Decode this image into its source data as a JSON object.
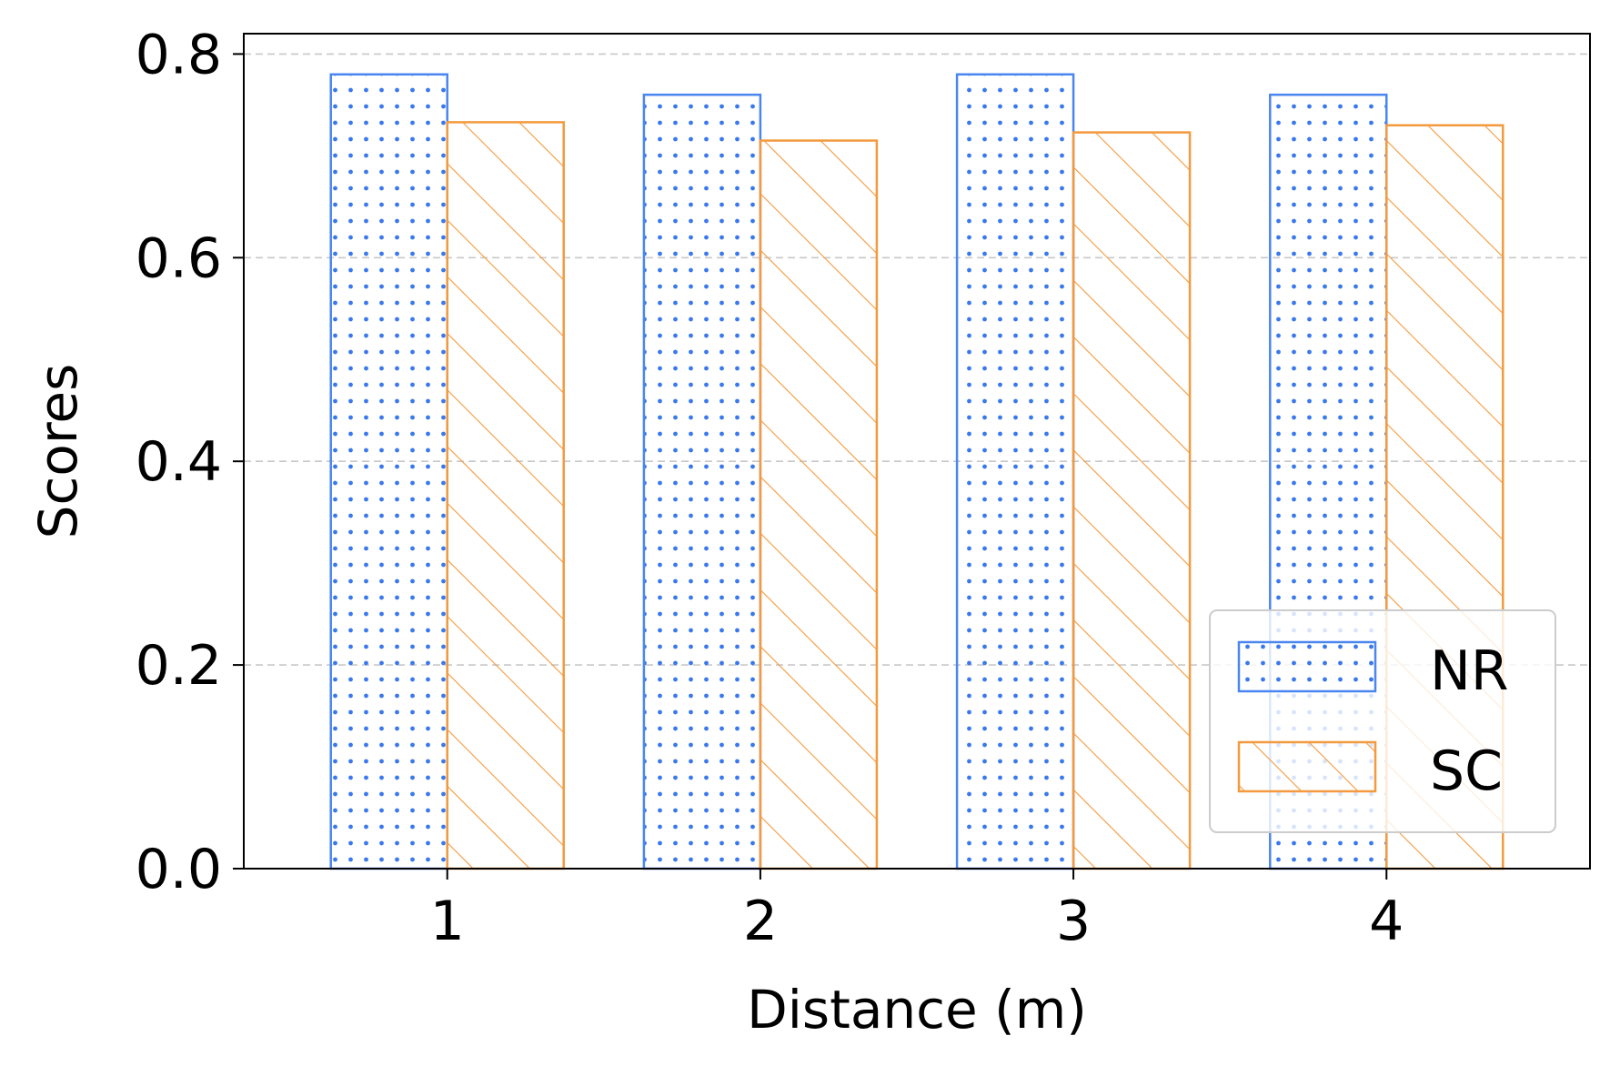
{
  "chart_data": {
    "type": "bar",
    "categories": [
      "1",
      "2",
      "3",
      "4"
    ],
    "series": [
      {
        "name": "NR",
        "values": [
          0.78,
          0.76,
          0.78,
          0.76
        ],
        "color": "#4a86f0",
        "hatch": "dots"
      },
      {
        "name": "SC",
        "values": [
          0.733,
          0.715,
          0.723,
          0.73
        ],
        "color": "#f39a3e",
        "hatch": "diagonal"
      }
    ],
    "xlabel": "Distance (m)",
    "ylabel": "Scores",
    "ylim": [
      0,
      0.82
    ],
    "yticks": [
      "0.0",
      "0.2",
      "0.4",
      "0.6",
      "0.8"
    ],
    "ytick_values": [
      0,
      0.2,
      0.4,
      0.6,
      0.8
    ],
    "grid": "horizontal dashed",
    "legend": "bottom-right"
  }
}
